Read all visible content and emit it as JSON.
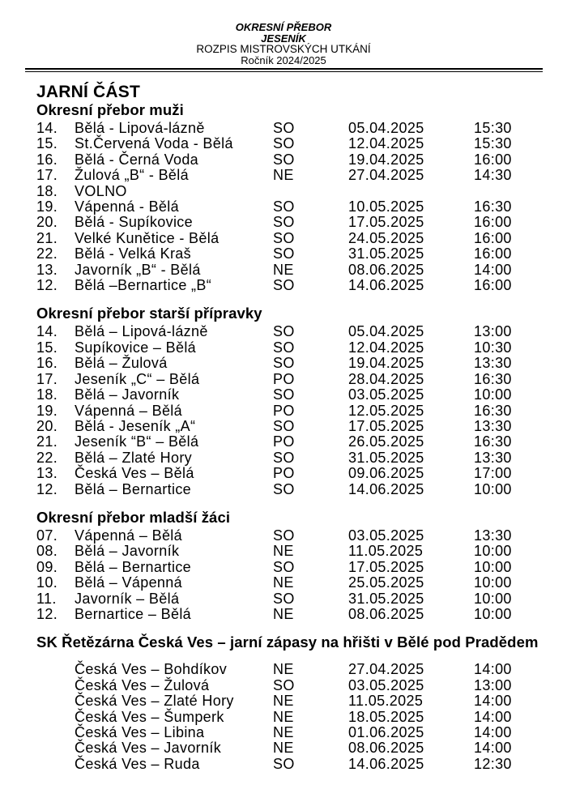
{
  "header": {
    "line1": "OKRESNÍ PŘEBOR",
    "line2": "JESENÍK",
    "line3": "ROZPIS MISTROVSKÝCH UTKÁNÍ",
    "line4": "Ročník 2024/2025"
  },
  "main_title": "JARNÍ ČÁST",
  "sections": [
    {
      "title": "Okresní přebor muži",
      "rows": [
        {
          "num": "14.",
          "match": "Bělá - Lipová-lázně",
          "day": "SO",
          "date": "05.04.2025",
          "time": "15:30"
        },
        {
          "num": "15.",
          "match": "St.Červená Voda - Bělá",
          "day": "SO",
          "date": "12.04.2025",
          "time": "15:30"
        },
        {
          "num": "16.",
          "match": "Bělá - Černá Voda",
          "day": "SO",
          "date": "19.04.2025",
          "time": "16:00"
        },
        {
          "num": "17.",
          "match": "Žulová „B“ - Bělá",
          "day": "NE",
          "date": "27.04.2025",
          "time": "14:30"
        },
        {
          "num": "18.",
          "match": "VOLNO",
          "day": "",
          "date": "",
          "time": ""
        },
        {
          "num": "19.",
          "match": "Vápenná - Bělá",
          "day": "SO",
          "date": "10.05.2025",
          "time": "16:30"
        },
        {
          "num": "20.",
          "match": "Bělá - Supíkovice",
          "day": "SO",
          "date": "17.05.2025",
          "time": "16:00"
        },
        {
          "num": "21.",
          "match": "Velké Kunětice - Bělá",
          "day": "SO",
          "date": "24.05.2025",
          "time": "16:00"
        },
        {
          "num": "22.",
          "match": "Bělá - Velká Kraš",
          "day": "SO",
          "date": "31.05.2025",
          "time": "16:00"
        },
        {
          "num": "13.",
          "match": "Javorník „B“ - Bělá",
          "day": "NE",
          "date": "08.06.2025",
          "time": "14:00"
        },
        {
          "num": "12.",
          "match": "Bělá –Bernartice „B“",
          "day": "SO",
          "date": "14.06.2025",
          "time": "16:00"
        }
      ]
    },
    {
      "title": "Okresní přebor starší přípravky",
      "rows": [
        {
          "num": "14.",
          "match": "Bělá – Lipová-lázně",
          "day": "SO",
          "date": "05.04.2025",
          "time": "13:00"
        },
        {
          "num": "15.",
          "match": "Supíkovice – Bělá",
          "day": "SO",
          "date": "12.04.2025",
          "time": "10:30"
        },
        {
          "num": "16.",
          "match": "Bělá – Žulová",
          "day": "SO",
          "date": "19.04.2025",
          "time": "13:30"
        },
        {
          "num": "17.",
          "match": "Jeseník „C“ – Bělá",
          "day": "PO",
          "date": "28.04.2025",
          "time": "16:30"
        },
        {
          "num": "18.",
          "match": "Bělá – Javorník",
          "day": "SO",
          "date": "03.05.2025",
          "time": "10:00"
        },
        {
          "num": "19.",
          "match": "Vápenná – Bělá",
          "day": "PO",
          "date": "12.05.2025",
          "time": "16:30"
        },
        {
          "num": "20.",
          "match": "Bělá - Jeseník „A“",
          "day": "SO",
          "date": "17.05.2025",
          "time": "13:30"
        },
        {
          "num": "21.",
          "match": "Jeseník “B“ – Bělá",
          "day": "PO",
          "date": "26.05.2025",
          "time": "16:30"
        },
        {
          "num": "22.",
          "match": "Bělá – Zlaté Hory",
          "day": "SO",
          "date": "31.05.2025",
          "time": "13:30"
        },
        {
          "num": "13.",
          "match": "Česká Ves – Bělá",
          "day": "PO",
          "date": "09.06.2025",
          "time": "17:00"
        },
        {
          "num": "12.",
          "match": "Bělá – Bernartice",
          "day": "SO",
          "date": "14.06.2025",
          "time": "10:00"
        }
      ]
    },
    {
      "title": "Okresní přebor mladší žáci",
      "rows": [
        {
          "num": "07.",
          "match": "Vápenná – Bělá",
          "day": "SO",
          "date": "03.05.2025",
          "time": "13:30"
        },
        {
          "num": "08.",
          "match": "Bělá – Javorník",
          "day": "NE",
          "date": "11.05.2025",
          "time": "10:00"
        },
        {
          "num": "09.",
          "match": "Bělá – Bernartice",
          "day": "SO",
          "date": "17.05.2025",
          "time": "10:00"
        },
        {
          "num": "10.",
          "match": "Bělá – Vápenná",
          "day": "NE",
          "date": "25.05.2025",
          "time": "10:00"
        },
        {
          "num": "11.",
          "match": "Javorník – Bělá",
          "day": "SO",
          "date": "31.05.2025",
          "time": "10:00"
        },
        {
          "num": "12.",
          "match": "Bernartice – Bělá",
          "day": "NE",
          "date": "08.06.2025",
          "time": "10:00"
        }
      ]
    },
    {
      "title": "SK Řetězárna Česká Ves – jarní zápasy na hřišti v Bělé pod Pradědem",
      "rows": [
        {
          "num": "",
          "match": "Česká Ves – Bohdíkov",
          "day": "NE",
          "date": "27.04.2025",
          "time": "14:00"
        },
        {
          "num": "",
          "match": "Česká Ves – Žulová",
          "day": "SO",
          "date": "03.05.2025",
          "time": "13:00"
        },
        {
          "num": "",
          "match": "Česká Ves – Zlaté Hory",
          "day": "NE",
          "date": "11.05.2025",
          "time": "14:00"
        },
        {
          "num": "",
          "match": "Česká Ves – Šumperk",
          "day": "NE",
          "date": "18.05.2025",
          "time": "14:00"
        },
        {
          "num": "",
          "match": "Česká Ves – Libina",
          "day": "NE",
          "date": "01.06.2025",
          "time": "14:00"
        },
        {
          "num": "",
          "match": "Česká Ves – Javorník",
          "day": "NE",
          "date": "08.06.2025",
          "time": "14:00"
        },
        {
          "num": "",
          "match": "Česká Ves – Ruda",
          "day": "SO",
          "date": "14.06.2025",
          "time": "12:30"
        }
      ]
    }
  ]
}
